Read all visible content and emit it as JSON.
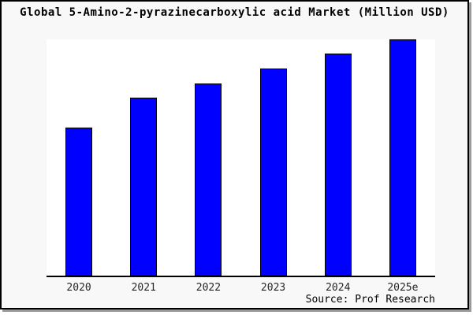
{
  "figure": {
    "title": "Global 5-Amino-2-pyrazinecarboxylic acid Market (Million USD)",
    "source_label": "Source: Prof Research",
    "background_color": "#f8f8f8",
    "plot_background_color": "#ffffff",
    "border_color": "#000000",
    "shadow_color": "#9a9a9a"
  },
  "chart_data": {
    "type": "bar",
    "title": "Global 5-Amino-2-pyrazinecarboxylic acid Market (Million USD)",
    "categories": [
      "2020",
      "2021",
      "2022",
      "2023",
      "2024",
      "2025e"
    ],
    "values": [
      62.6,
      75.2,
      81.5,
      87.8,
      93.9,
      100
    ],
    "value_scale": "relative bar height, percent of tallest bar (y-axis has no labels or gridlines)",
    "xlabel": "",
    "ylabel": "",
    "ylim_pixels_top_is_max_bar": true,
    "legend": false,
    "gridlines": false,
    "bar_color": "#0000ff",
    "bar_border_color": "#000000",
    "baseline_axis_color": "#000000"
  }
}
